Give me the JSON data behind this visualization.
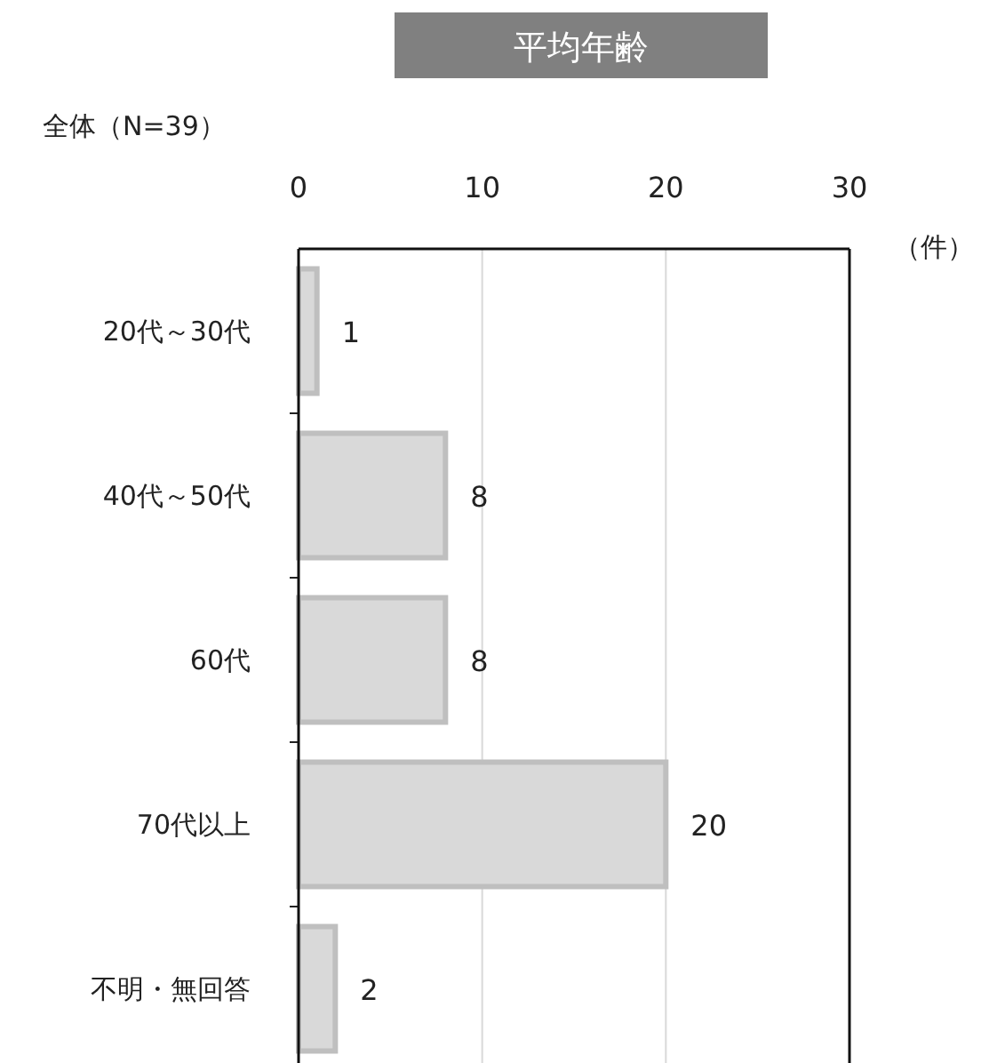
{
  "chart_data": {
    "type": "bar",
    "orientation": "horizontal",
    "title": "平均年齢",
    "subtitle": "全体（N=39）",
    "xlabel": "（件）",
    "categories": [
      "20代～30代",
      "40代～50代",
      "60代",
      "70代以上",
      "不明・無回答"
    ],
    "values": [
      1,
      8,
      8,
      20,
      2
    ],
    "color": "#d9d9d9",
    "xlim": [
      0,
      30
    ],
    "xticks": [
      0,
      10,
      20,
      30
    ],
    "grid": "x",
    "data_labels": true
  }
}
